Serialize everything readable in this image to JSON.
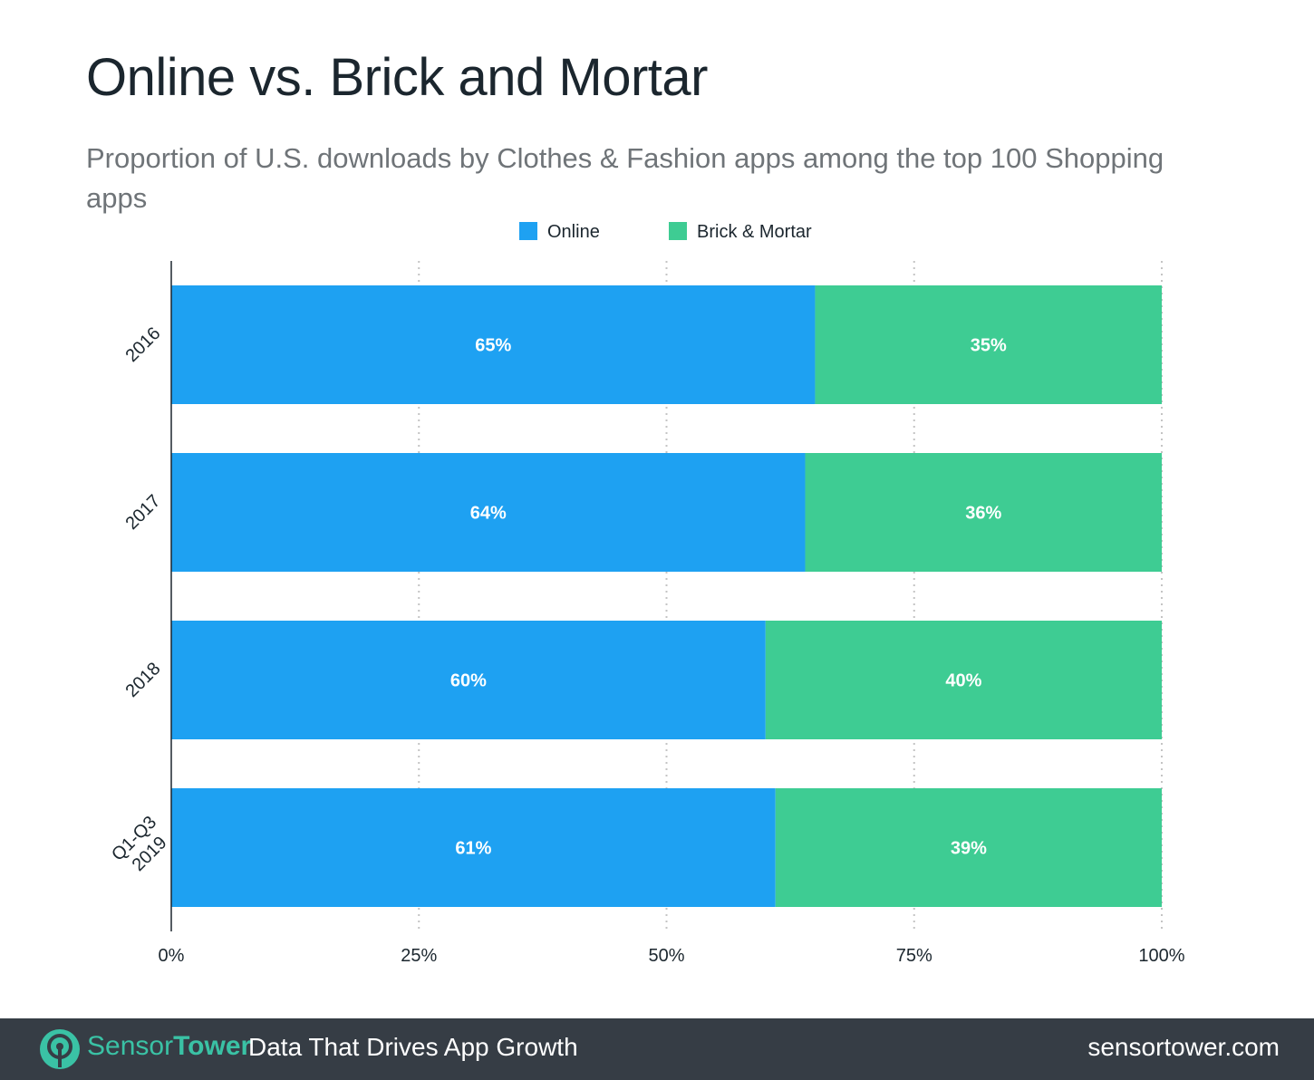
{
  "chart_data": {
    "type": "bar",
    "orientation": "horizontal",
    "stacked": true,
    "title": "Online vs. Brick and Mortar",
    "subtitle": "Proportion of U.S. downloads by Clothes & Fashion apps among the top 100 Shopping apps",
    "categories": [
      "2016",
      "2017",
      "2018",
      "Q1-Q3 2019"
    ],
    "series": [
      {
        "name": "Online",
        "color": "#1ea1f2",
        "values": [
          65,
          64,
          60,
          61
        ],
        "labels": [
          "65%",
          "64%",
          "60%",
          "61%"
        ]
      },
      {
        "name": "Brick & Mortar",
        "color": "#3ecc93",
        "values": [
          35,
          36,
          40,
          39
        ],
        "labels": [
          "35%",
          "36%",
          "40%",
          "39%"
        ]
      }
    ],
    "xlim": [
      0,
      100
    ],
    "xticks": [
      0,
      25,
      50,
      75,
      100
    ],
    "xtick_labels": [
      "0%",
      "25%",
      "50%",
      "75%",
      "100%"
    ],
    "grid": "vertical dotted",
    "legend_position": "top-center"
  },
  "footer": {
    "brand_sensor": "Sensor",
    "brand_tower": "Tower",
    "tagline": "Data That Drives App Growth",
    "website": "sensortower.com"
  }
}
